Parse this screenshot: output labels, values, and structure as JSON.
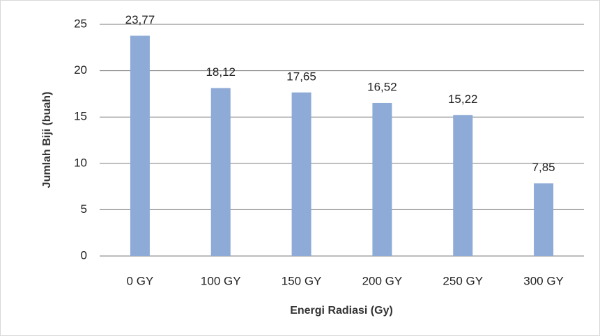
{
  "chart_data": {
    "type": "bar",
    "y_label": "Jumlah Biji  (buah)",
    "x_label": "Energi Radiasi  (Gy)",
    "categories": [
      "0 GY",
      "100 GY",
      "150 GY",
      "200 GY",
      "250 GY",
      "300 GY"
    ],
    "values": [
      23.77,
      18.12,
      17.65,
      16.52,
      15.22,
      7.85
    ],
    "value_labels": [
      "23,77",
      "18,12",
      "17,65",
      "16,52",
      "15,22",
      "7,85"
    ],
    "color": "#8eaad6",
    "ylim": [
      0,
      25
    ],
    "yticks": [
      0,
      5,
      10,
      15,
      20,
      25
    ],
    "grid": true
  }
}
